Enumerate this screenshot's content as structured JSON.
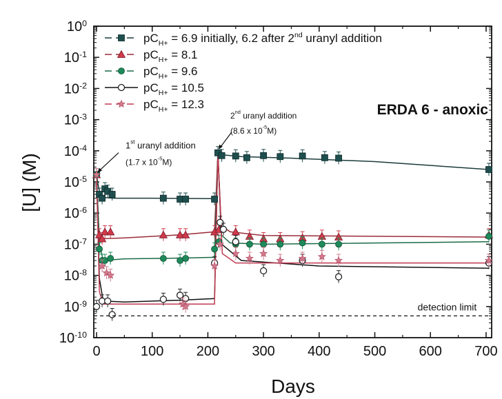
{
  "chart_data": {
    "type": "scatter",
    "title": "ERDA 6 - anoxic",
    "xlabel": "Days",
    "ylabel": "[U] (M)",
    "xlim": [
      -5,
      710
    ],
    "ylim_log10": [
      -10,
      0
    ],
    "y_scale": "log",
    "x_ticks": [
      "0",
      "100",
      "200",
      "300",
      "400",
      "500",
      "600",
      "700"
    ],
    "y_tick_base": "10",
    "y_tick_exponents": [
      "0",
      "-1",
      "-2",
      "-3",
      "-4",
      "-5",
      "-6",
      "-7",
      "-8",
      "-9",
      "-10"
    ],
    "legend_position": "top-left",
    "grid": false,
    "series": [
      {
        "label_main": "pC",
        "label_sub": "H+",
        "label_value": "= 6.9 initially, 6.2 after 2",
        "label_sup": "nd",
        "label_tail": "uranyl addition",
        "color": "#1f4e4e",
        "line_color": "#1a3a3a",
        "marker": "square",
        "points": [
          [
            0,
            1.7e-05
          ],
          [
            5,
            4e-06
          ],
          [
            10,
            3e-06
          ],
          [
            15,
            6e-06
          ],
          [
            20,
            5e-06
          ],
          [
            28,
            4e-06
          ],
          [
            120,
            3e-06
          ],
          [
            150,
            2.8e-06
          ],
          [
            160,
            2.8e-06
          ],
          [
            212,
            2.8e-06
          ],
          [
            218,
            8.6e-05
          ],
          [
            225,
            7e-05
          ],
          [
            250,
            6.8e-05
          ],
          [
            270,
            6e-05
          ],
          [
            300,
            7e-05
          ],
          [
            330,
            6.5e-05
          ],
          [
            370,
            6.8e-05
          ],
          [
            410,
            6e-05
          ],
          [
            435,
            5.8e-05
          ],
          [
            705,
            2.5e-05
          ]
        ],
        "curve": [
          [
            0,
            1.7e-05
          ],
          [
            4,
            6e-06
          ],
          [
            10,
            3.2e-06
          ],
          [
            30,
            3e-06
          ],
          [
            100,
            3e-06
          ],
          [
            212,
            2.9e-06
          ],
          [
            216,
            2.9e-06
          ],
          [
            218,
            8.6e-05
          ],
          [
            222,
            7.5e-05
          ],
          [
            260,
            6.5e-05
          ],
          [
            350,
            5.8e-05
          ],
          [
            500,
            4.5e-05
          ],
          [
            705,
            2.5e-05
          ]
        ]
      },
      {
        "label_main": "pC",
        "label_sub": "H+",
        "label_value": "= 8.1",
        "label_sup": "",
        "label_tail": "",
        "color": "#d03a4a",
        "line_color": "#9a2c3a",
        "marker": "triangle",
        "points": [
          [
            0,
            1.7e-05
          ],
          [
            5,
            2e-07
          ],
          [
            10,
            1.5e-07
          ],
          [
            15,
            2.5e-07
          ],
          [
            25,
            2.5e-07
          ],
          [
            120,
            2e-07
          ],
          [
            150,
            2e-07
          ],
          [
            160,
            2e-07
          ],
          [
            212,
            2.5e-07
          ],
          [
            220,
            3e-07
          ],
          [
            250,
            2.5e-07
          ],
          [
            275,
            1.8e-07
          ],
          [
            300,
            1.5e-07
          ],
          [
            330,
            1.5e-07
          ],
          [
            370,
            1.6e-07
          ],
          [
            405,
            1.8e-07
          ],
          [
            435,
            1.7e-07
          ],
          [
            705,
            2e-07
          ]
        ],
        "curve": [
          [
            0,
            1.7e-05
          ],
          [
            4,
            3e-07
          ],
          [
            10,
            1.5e-07
          ],
          [
            50,
            1.6e-07
          ],
          [
            150,
            2e-07
          ],
          [
            212,
            2.5e-07
          ],
          [
            218,
            8.6e-05
          ],
          [
            224,
            4e-07
          ],
          [
            240,
            2.5e-07
          ],
          [
            300,
            1.9e-07
          ],
          [
            705,
            1.7e-07
          ]
        ]
      },
      {
        "label_main": "pC",
        "label_sub": "H+",
        "label_value": "= 9.6",
        "label_sup": "",
        "label_tail": "",
        "color": "#1e8a5a",
        "line_color": "#1a6a48",
        "marker": "circle",
        "points": [
          [
            0,
            1.7e-05
          ],
          [
            5,
            7e-08
          ],
          [
            10,
            3e-08
          ],
          [
            15,
            3e-08
          ],
          [
            25,
            3.5e-08
          ],
          [
            120,
            3.5e-08
          ],
          [
            150,
            3e-08
          ],
          [
            160,
            3.5e-08
          ],
          [
            212,
            7e-08
          ],
          [
            220,
            1.2e-07
          ],
          [
            250,
            1e-07
          ],
          [
            275,
            1e-07
          ],
          [
            300,
            1e-07
          ],
          [
            330,
            1e-07
          ],
          [
            370,
            1.1e-07
          ],
          [
            405,
            1e-07
          ],
          [
            435,
            1e-07
          ],
          [
            705,
            1.8e-07
          ]
        ],
        "curve": [
          [
            0,
            1.7e-05
          ],
          [
            5,
            1e-07
          ],
          [
            12,
            3e-08
          ],
          [
            50,
            3.4e-08
          ],
          [
            150,
            3.6e-08
          ],
          [
            212,
            3.8e-08
          ],
          [
            218,
            8.6e-05
          ],
          [
            224,
            2e-07
          ],
          [
            240,
            1.1e-07
          ],
          [
            300,
            1e-07
          ],
          [
            705,
            1.2e-07
          ]
        ]
      },
      {
        "label_main": "pC",
        "label_sub": "H+",
        "label_value": "= 10.5",
        "label_sup": "",
        "label_tail": "",
        "color": "#222222",
        "line_color": "#111111",
        "marker": "open-circle",
        "points": [
          [
            0,
            1e-09
          ],
          [
            10,
            1.5e-09
          ],
          [
            20,
            1.5e-09
          ],
          [
            28,
            5.5e-10
          ],
          [
            120,
            1.7e-09
          ],
          [
            150,
            2.3e-09
          ],
          [
            160,
            1.8e-09
          ],
          [
            212,
            2.5e-08
          ],
          [
            222,
            5e-07
          ],
          [
            228,
            3e-07
          ],
          [
            250,
            1.2e-07
          ],
          [
            300,
            1.4e-08
          ],
          [
            370,
            3e-08
          ],
          [
            435,
            9e-09
          ],
          [
            705,
            2.5e-08
          ]
        ],
        "curve": [
          [
            0,
            1.7e-05
          ],
          [
            5,
            8e-09
          ],
          [
            12,
            1.5e-09
          ],
          [
            50,
            1.4e-09
          ],
          [
            150,
            1.6e-09
          ],
          [
            212,
            1.8e-09
          ],
          [
            218,
            8.6e-05
          ],
          [
            225,
            1e-07
          ],
          [
            260,
            3e-08
          ],
          [
            400,
            2e-08
          ],
          [
            705,
            1.7e-08
          ]
        ]
      },
      {
        "label_main": "pC",
        "label_sub": "H+",
        "label_value": "= 12.3",
        "label_sup": "",
        "label_tail": "",
        "color": "#d07a8a",
        "line_color": "#c03a50",
        "marker": "star",
        "points": [
          [
            0,
            1.7e-05
          ],
          [
            10,
            2e-08
          ],
          [
            18,
            1.2e-08
          ],
          [
            25,
            1e-08
          ],
          [
            155,
            1.2e-09
          ],
          [
            160,
            1e-09
          ],
          [
            212,
            2e-08
          ],
          [
            222,
            1e-07
          ],
          [
            250,
            5e-08
          ],
          [
            275,
            3.5e-08
          ],
          [
            300,
            5e-08
          ],
          [
            330,
            3e-08
          ],
          [
            370,
            3.5e-08
          ],
          [
            405,
            4e-08
          ],
          [
            435,
            3e-08
          ],
          [
            705,
            3e-08
          ]
        ],
        "curve": [
          [
            0,
            1.7e-05
          ],
          [
            5,
            3e-09
          ],
          [
            12,
            1.2e-09
          ],
          [
            80,
            1.2e-09
          ],
          [
            212,
            1.2e-09
          ],
          [
            218,
            8.6e-05
          ],
          [
            226,
            5e-08
          ],
          [
            250,
            2.5e-08
          ],
          [
            705,
            2.5e-08
          ]
        ]
      }
    ],
    "annotations": {
      "first_addition": {
        "label": "1",
        "sup": "st",
        "tail": " uranyl addition",
        "conc": "(1.7 x 10",
        "conc_exp": "-5",
        "conc_unit": "M)",
        "x": 0,
        "y": 1.7e-05
      },
      "second_addition": {
        "label": "2",
        "sup": "nd",
        "tail": " uranyl addition",
        "conc": "(8.6 x 10",
        "conc_exp": "-5",
        "conc_unit": "M)",
        "x": 218,
        "y": 8.6e-05
      },
      "detection_limit": {
        "label": "detection limit",
        "y": 5e-10
      }
    }
  }
}
